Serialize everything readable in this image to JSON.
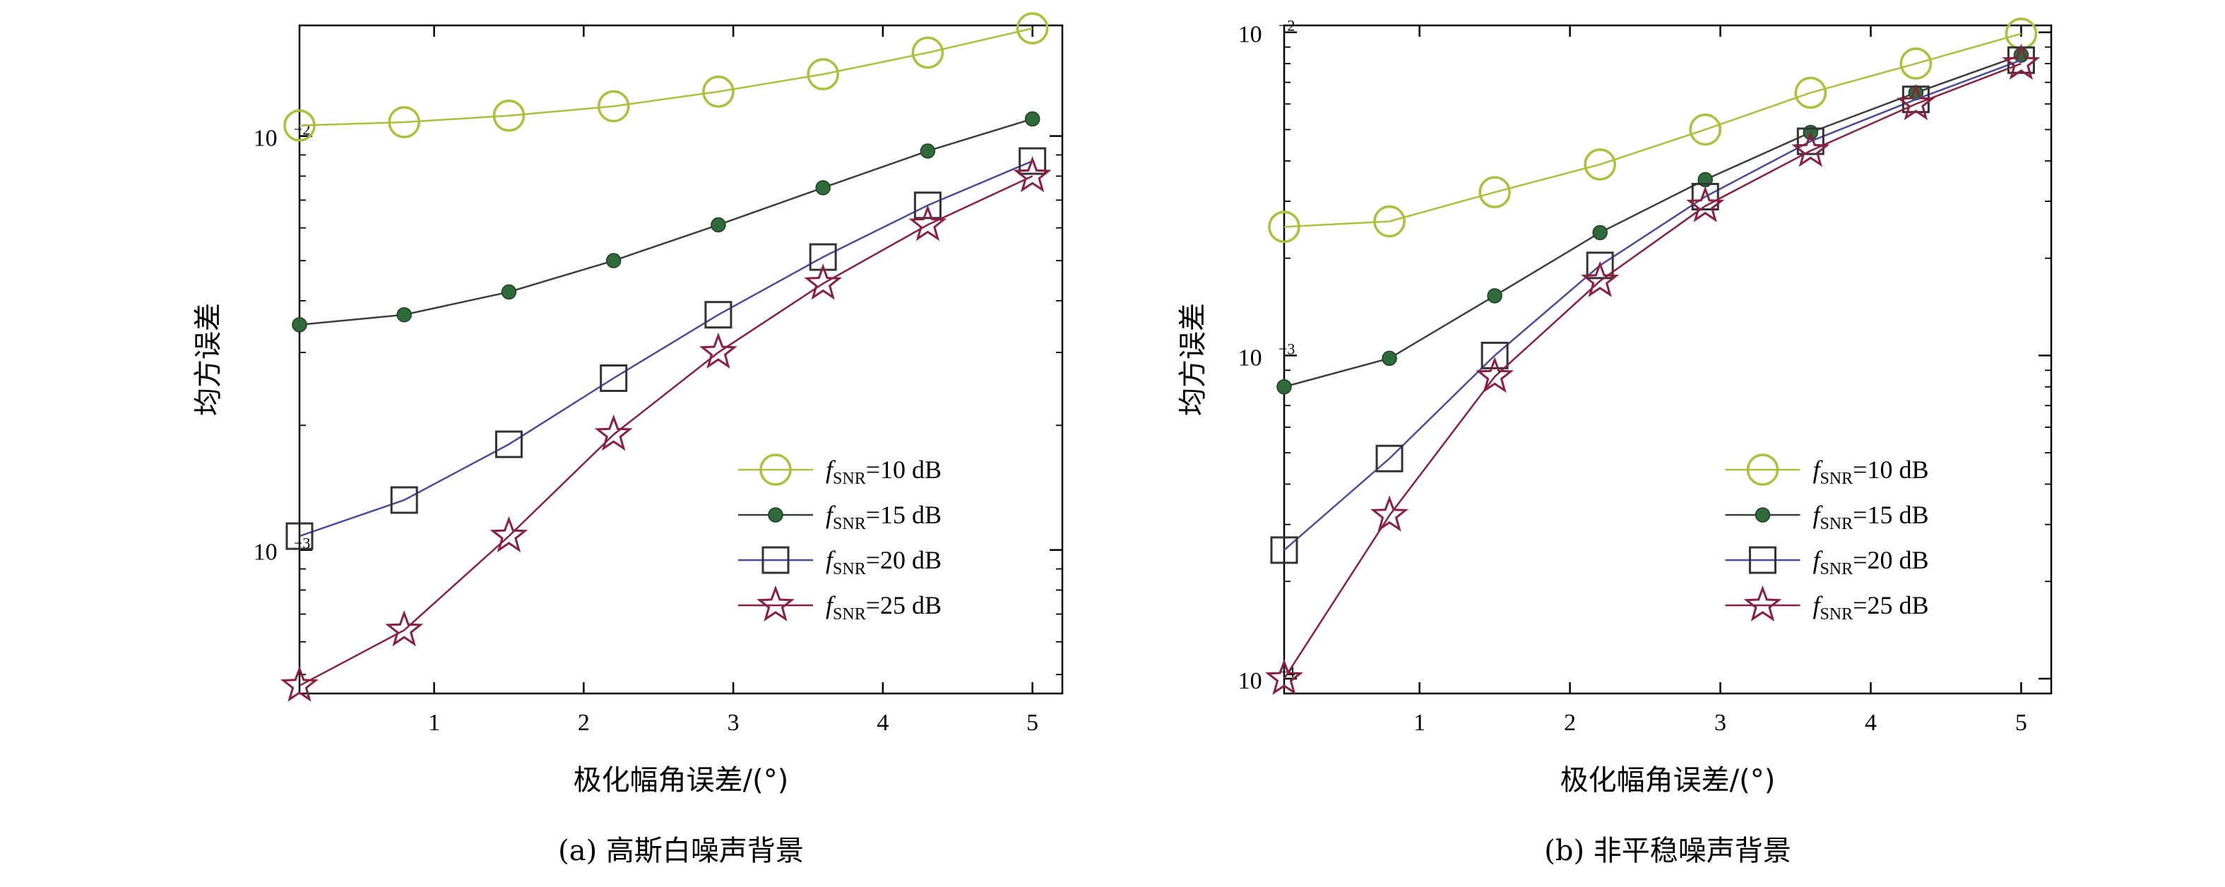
{
  "chart_data": [
    {
      "type": "line",
      "caption": "(a) 高斯白噪声背景",
      "xlabel": "极化幅角误差/(°)",
      "ylabel": "均方误差",
      "xlim": [
        0.1,
        5.2
      ],
      "ylim": [
        0.00045,
        0.0185
      ],
      "yscale": "log",
      "xticks": [
        {
          "value": 1,
          "label": "1"
        },
        {
          "value": 2,
          "label": "2"
        },
        {
          "value": 3,
          "label": "3"
        },
        {
          "value": 4,
          "label": "4"
        },
        {
          "value": 5,
          "label": "5"
        }
      ],
      "yticks": [
        {
          "value": 0.001,
          "base": "10",
          "exp": "−3"
        },
        {
          "value": 0.01,
          "base": "10",
          "exp": "−2"
        }
      ],
      "x": [
        0.1,
        0.8,
        1.5,
        2.2,
        2.9,
        3.6,
        4.3,
        5.0
      ],
      "series": [
        {
          "name": "=10 dB",
          "name_prefix": "f",
          "name_sub": "SNR",
          "marker": "circle-open",
          "color": "#a9c23a",
          "values": [
            0.0106,
            0.0108,
            0.0112,
            0.0118,
            0.0128,
            0.0141,
            0.0159,
            0.0182
          ]
        },
        {
          "name": "=15 dB",
          "name_prefix": "f",
          "name_sub": "SNR",
          "marker": "dot-filled",
          "color": "#3d3d3d",
          "values": [
            0.0035,
            0.0037,
            0.0042,
            0.005,
            0.0061,
            0.0075,
            0.0092,
            0.011
          ]
        },
        {
          "name": "=20 dB",
          "name_prefix": "f",
          "name_sub": "SNR",
          "marker": "square-open",
          "color": "#4a4aa0",
          "values": [
            0.00108,
            0.00132,
            0.0018,
            0.0026,
            0.0037,
            0.0051,
            0.0068,
            0.0087
          ]
        },
        {
          "name": "=25 dB",
          "name_prefix": "f",
          "name_sub": "SNR",
          "marker": "star-open",
          "color": "#8a1f3e",
          "values": [
            0.00047,
            0.00064,
            0.00108,
            0.0019,
            0.003,
            0.0044,
            0.0061,
            0.008
          ]
        }
      ],
      "legend": "lower-right",
      "grid": false
    },
    {
      "type": "line",
      "caption": "(b) 非平稳噪声背景",
      "xlabel": "极化幅角误差/(°)",
      "ylabel": "均方误差",
      "xlim": [
        0.1,
        5.2
      ],
      "ylim": [
        9e-05,
        0.0105
      ],
      "yscale": "log",
      "xticks": [
        {
          "value": 1,
          "label": "1"
        },
        {
          "value": 2,
          "label": "2"
        },
        {
          "value": 3,
          "label": "3"
        },
        {
          "value": 4,
          "label": "4"
        },
        {
          "value": 5,
          "label": "5"
        }
      ],
      "yticks": [
        {
          "value": 0.0001,
          "base": "10",
          "exp": "−4"
        },
        {
          "value": 0.001,
          "base": "10",
          "exp": "−3"
        },
        {
          "value": 0.01,
          "base": "10",
          "exp": "−2"
        }
      ],
      "x": [
        0.1,
        0.8,
        1.5,
        2.2,
        2.9,
        3.6,
        4.3,
        5.0
      ],
      "series": [
        {
          "name": "=10 dB",
          "name_prefix": "f",
          "name_sub": "SNR",
          "marker": "circle-open",
          "color": "#a9c23a",
          "values": [
            0.0025,
            0.0026,
            0.0032,
            0.0039,
            0.005,
            0.0065,
            0.008,
            0.0099
          ]
        },
        {
          "name": "=15 dB",
          "name_prefix": "f",
          "name_sub": "SNR",
          "marker": "dot-filled",
          "color": "#3d3d3d",
          "values": [
            0.0008,
            0.00098,
            0.00153,
            0.0024,
            0.0035,
            0.0049,
            0.0065,
            0.0085
          ]
        },
        {
          "name": "=20 dB",
          "name_prefix": "f",
          "name_sub": "SNR",
          "marker": "square-open",
          "color": "#4a4aa0",
          "values": [
            0.00025,
            0.00048,
            0.001,
            0.0019,
            0.0031,
            0.0046,
            0.0062,
            0.0082
          ]
        },
        {
          "name": "=25 dB",
          "name_prefix": "f",
          "name_sub": "SNR",
          "marker": "star-open",
          "color": "#8a1f3e",
          "values": [
            0.0001,
            0.00032,
            0.00086,
            0.0017,
            0.0029,
            0.0043,
            0.006,
            0.008
          ]
        }
      ],
      "legend": "lower-right",
      "grid": false
    }
  ]
}
